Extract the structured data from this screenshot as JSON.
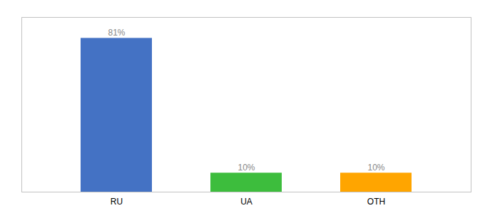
{
  "chart_data": {
    "type": "bar",
    "categories": [
      "RU",
      "UA",
      "OTH"
    ],
    "values": [
      81,
      10,
      10
    ],
    "value_labels": [
      "81%",
      "10%",
      "10%"
    ],
    "colors": [
      "#4472C4",
      "#3DBD3D",
      "#FFA500"
    ],
    "ylim": [
      0,
      92
    ],
    "data_labels": true,
    "grid": false,
    "tick_labels": "x"
  }
}
